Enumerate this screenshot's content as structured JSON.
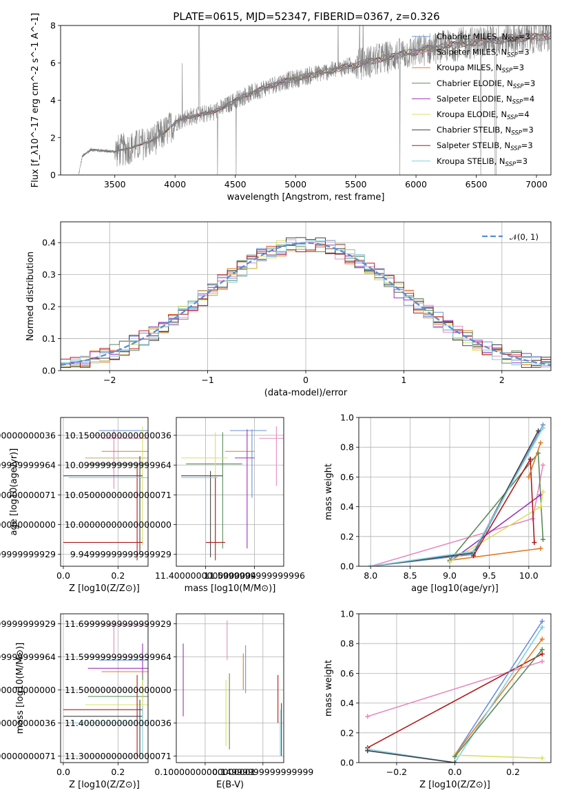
{
  "title": "PLATE=0615, MJD=52347, FIBERID=0367, z=0.326",
  "colors": {
    "chabrier_miles": "#6b8fd6",
    "salpeter_miles": "#e58ac0",
    "kroupa_miles": "#e07b22",
    "chabrier_elodie": "#5a8a5a",
    "salpeter_elodie": "#9b30b8",
    "kroupa_elodie": "#d9e060",
    "chabrier_stelib": "#404040",
    "salpeter_stelib": "#b01818",
    "kroupa_stelib": "#7fd0e0",
    "data": "#808080"
  },
  "chart_data": [
    {
      "type": "line",
      "id": "spectrum",
      "xlabel": "wavelength [Angstrom, rest frame]",
      "ylabel": "Flux [f_λ10^-17 erg cm^-2 s^-1 A^-1]",
      "xlim": [
        3050,
        7120
      ],
      "ylim": [
        0,
        8
      ],
      "xticks": [
        3500,
        4000,
        4500,
        5000,
        5500,
        6000,
        6500,
        7000
      ],
      "yticks": [
        0,
        2,
        4,
        6,
        8
      ],
      "continuum": {
        "x": [
          3200,
          3230,
          3300,
          3400,
          3500,
          3600,
          3700,
          3800,
          3900,
          4000,
          4100,
          4200,
          4300,
          4400,
          4500,
          4600,
          4700,
          4800,
          4900,
          5000,
          5100,
          5200,
          5300,
          5400,
          5500,
          5600,
          5700,
          5800,
          5900,
          6000,
          6100,
          6200,
          6300,
          6400,
          6500,
          6600,
          6700,
          6800,
          6900,
          7000
        ],
        "y": [
          0.0,
          1.0,
          1.35,
          1.3,
          1.25,
          1.4,
          1.6,
          1.8,
          2.2,
          2.8,
          3.1,
          3.2,
          3.35,
          3.6,
          4.0,
          4.3,
          4.55,
          4.8,
          5.0,
          5.15,
          5.3,
          5.45,
          5.6,
          5.75,
          5.9,
          6.05,
          6.2,
          6.35,
          6.5,
          6.6,
          6.75,
          6.85,
          6.95,
          7.05,
          7.1,
          7.2,
          7.25,
          7.3,
          7.35,
          7.4
        ]
      },
      "legend": [
        {
          "name": "Chabrier MILES, N_SSP=3",
          "color_key": "chabrier_miles"
        },
        {
          "name": "Salpeter MILES, N_SSP=3",
          "color_key": "salpeter_miles"
        },
        {
          "name": "Kroupa MILES, N_SSP=3",
          "color_key": "kroupa_miles"
        },
        {
          "name": "Chabrier ELODIE, N_SSP=3",
          "color_key": "chabrier_elodie"
        },
        {
          "name": "Salpeter ELODIE, N_SSP=4",
          "color_key": "salpeter_elodie"
        },
        {
          "name": "Kroupa ELODIE, N_SSP=4",
          "color_key": "kroupa_elodie"
        },
        {
          "name": "Chabrier STELIB, N_SSP=3",
          "color_key": "chabrier_stelib"
        },
        {
          "name": "Salpeter STELIB, N_SSP=3",
          "color_key": "salpeter_stelib"
        },
        {
          "name": "Kroupa STELIB, N_SSP=3",
          "color_key": "kroupa_stelib"
        }
      ],
      "legend_placement": "right"
    },
    {
      "type": "line",
      "id": "residuals",
      "xlabel": "(data-model)/error",
      "ylabel": "Normed distribution",
      "xlim": [
        -2.5,
        2.5
      ],
      "ylim": [
        0,
        0.465
      ],
      "xticks": [
        -2,
        -1,
        0,
        1,
        2
      ],
      "yticks": [
        0.0,
        0.1,
        0.2,
        0.3,
        0.4
      ],
      "grid": true,
      "gaussian_label": "𝒩(0, 1)",
      "gaussian_color": "#5b8bd6",
      "bin_width": 0.1,
      "bins_start": -2.5
    },
    {
      "type": "scatter",
      "id": "age-vs-Z",
      "xlabel": "Z [log10(Z/Z⊙)]",
      "ylabel": "age  [log10(age/yr)]",
      "xlim": [
        -0.01,
        0.31
      ],
      "ylim": [
        9.93,
        10.18
      ],
      "xticks": [
        0.0,
        0.2
      ],
      "yticks": [
        9.95,
        10.0,
        10.05,
        10.1,
        10.15
      ],
      "grid": true,
      "points": [
        {
          "c": "chabrier_miles",
          "x": 0.27,
          "y": 10.158,
          "x0": 0.13,
          "x1": 0.31,
          "y0": 10.158,
          "y1": 10.158
        },
        {
          "c": "salpeter_miles",
          "x": 0.185,
          "y": 10.145,
          "x0": 0.14,
          "x1": 0.31,
          "y0": 10.06,
          "y1": 10.16
        },
        {
          "c": "kroupa_miles",
          "x": 0.28,
          "y": 10.123,
          "x0": 0.14,
          "x1": 0.31,
          "y0": 10.123,
          "y1": 10.123
        },
        {
          "c": "chabrier_elodie",
          "x": 0.29,
          "y": 10.102,
          "x0": 0.09,
          "x1": 0.31,
          "y0": 10.102,
          "y1": 10.102
        },
        {
          "c": "salpeter_elodie",
          "x": 0.29,
          "y": 10.112,
          "x0": 0.08,
          "x1": 0.31,
          "y0": 10.112,
          "y1": 10.112
        },
        {
          "c": "kroupa_elodie",
          "x": 0.29,
          "y": 10.112,
          "x0": 0.08,
          "x1": 0.31,
          "y0": 9.965,
          "y1": 10.165
        },
        {
          "c": "chabrier_stelib",
          "x": 0.28,
          "y": 10.082,
          "x0": 0.0,
          "x1": 0.29,
          "y0": 9.95,
          "y1": 10.115
        },
        {
          "c": "salpeter_stelib",
          "x": 0.27,
          "y": 9.97,
          "x0": 0.0,
          "x1": 0.29,
          "y0": 9.94,
          "y1": 10.1
        },
        {
          "c": "kroupa_stelib",
          "x": 0.29,
          "y": 10.079,
          "x0": 0.02,
          "x1": 0.31,
          "y0": 10.079,
          "y1": 10.079
        }
      ]
    },
    {
      "type": "scatter",
      "id": "age-vs-mass",
      "xlabel": "mass [log10(M/M⊙)]",
      "ylabel": "",
      "xlim": [
        11.28,
        11.72
      ],
      "ylim": [
        9.93,
        10.18
      ],
      "xticks": [
        11.4,
        11.6
      ],
      "yticks": [
        9.95,
        10.0,
        10.05,
        10.1,
        10.15
      ],
      "grid": true,
      "points": [
        {
          "c": "chabrier_miles",
          "x": 11.59,
          "y": 10.158,
          "x0": 11.5,
          "x1": 11.65,
          "y0": 10.045,
          "y1": 10.16
        },
        {
          "c": "salpeter_miles",
          "x": 11.69,
          "y": 10.145,
          "x0": 11.62,
          "x1": 11.72,
          "y0": 10.065,
          "y1": 10.165
        },
        {
          "c": "kroupa_miles",
          "x": 11.56,
          "y": 10.123,
          "x0": 11.48,
          "x1": 11.6,
          "y0": 10.123,
          "y1": 10.123
        },
        {
          "c": "chabrier_elodie",
          "x": 11.47,
          "y": 10.102,
          "x0": 11.32,
          "x1": 11.55,
          "y0": 9.96,
          "y1": 10.155
        },
        {
          "c": "salpeter_elodie",
          "x": 11.57,
          "y": 10.112,
          "x0": 11.52,
          "x1": 11.6,
          "y0": 9.96,
          "y1": 10.16
        },
        {
          "c": "kroupa_elodie",
          "x": 11.44,
          "y": 10.112,
          "x0": 11.3,
          "x1": 11.49,
          "y0": 9.97,
          "y1": 10.155
        },
        {
          "c": "chabrier_stelib",
          "x": 11.42,
          "y": 10.082,
          "x0": 11.3,
          "x1": 11.47,
          "y0": 9.945,
          "y1": 10.09
        },
        {
          "c": "salpeter_stelib",
          "x": 11.44,
          "y": 9.97,
          "x0": 11.4,
          "x1": 11.48,
          "y0": 9.94,
          "y1": 10.08
        },
        {
          "c": "kroupa_stelib",
          "x": 11.4,
          "y": 10.079,
          "x0": 11.3,
          "x1": 11.45,
          "y0": 9.96,
          "y1": 10.08
        }
      ]
    },
    {
      "type": "line",
      "id": "mass-weight-vs-age",
      "xlabel": "age  [log10(age/yr)]",
      "ylabel": "mass weight",
      "xlim": [
        7.85,
        10.28
      ],
      "ylim": [
        0,
        1
      ],
      "xticks": [
        8.0,
        8.5,
        9.0,
        9.5,
        10.0
      ],
      "yticks": [
        0.0,
        0.2,
        0.4,
        0.6,
        0.8,
        1.0
      ],
      "grid": true,
      "series": [
        {
          "c": "chabrier_miles",
          "x": [
            8.0,
            9.3,
            10.18
          ],
          "y": [
            0.0,
            0.08,
            0.95
          ]
        },
        {
          "c": "salpeter_miles",
          "x": [
            8.0,
            10.05,
            10.18
          ],
          "y": [
            0.0,
            0.32,
            0.68
          ]
        },
        {
          "c": "kroupa_miles",
          "x": [
            9.0,
            10.15
          ],
          "y": [
            0.04,
            0.12
          ]
        },
        {
          "c": "chabrier_elodie",
          "x": [
            9.0,
            10.12,
            10.18
          ],
          "y": [
            0.04,
            0.76,
            0.18
          ]
        },
        {
          "c": "salpeter_elodie",
          "x": [
            9.0,
            10.15
          ],
          "y": [
            0.03,
            0.48
          ]
        },
        {
          "c": "kroupa_elodie",
          "x": [
            9.0,
            10.15,
            10.18
          ],
          "y": [
            0.03,
            0.4,
            0.5
          ]
        },
        {
          "c": "chabrier_stelib",
          "x": [
            8.0,
            9.3,
            10.12
          ],
          "y": [
            0.0,
            0.09,
            0.91
          ]
        },
        {
          "c": "salpeter_stelib",
          "x": [
            9.3,
            10.02,
            10.07
          ],
          "y": [
            0.07,
            0.72,
            0.16
          ]
        },
        {
          "c": "kroupa_stelib",
          "x": [
            8.0,
            9.3,
            10.18
          ],
          "y": [
            0.0,
            0.1,
            0.93
          ]
        },
        {
          "c": "kroupa_miles",
          "x": [
            10.0,
            10.15
          ],
          "y": [
            0.6,
            0.83
          ]
        }
      ]
    },
    {
      "type": "scatter",
      "id": "mass-vs-Z",
      "xlabel": "Z [log10(Z/Z⊙)]",
      "ylabel": "mass [log10(M/M⊙)]",
      "xlim": [
        -0.01,
        0.31
      ],
      "ylim": [
        11.28,
        11.73
      ],
      "xticks": [
        0.0,
        0.2
      ],
      "yticks": [
        11.3,
        11.4,
        11.5,
        11.6,
        11.7
      ],
      "grid": true,
      "points": [
        {
          "c": "salpeter_miles",
          "x": 0.185,
          "y": 11.695,
          "x0": 0.14,
          "x1": 0.31,
          "y0": 11.61,
          "y1": 11.71
        },
        {
          "c": "chabrier_miles",
          "x": 0.27,
          "y": 11.59,
          "x0": 0.13,
          "x1": 0.31,
          "y0": 11.59,
          "y1": 11.59
        },
        {
          "c": "salpeter_elodie",
          "x": 0.29,
          "y": 11.565,
          "x0": 0.09,
          "x1": 0.31,
          "y0": 11.5,
          "y1": 11.64
        },
        {
          "c": "kroupa_miles",
          "x": 0.28,
          "y": 11.555,
          "x0": 0.14,
          "x1": 0.31,
          "y0": 11.555,
          "y1": 11.555
        },
        {
          "c": "chabrier_elodie",
          "x": 0.29,
          "y": 11.48,
          "x0": 0.09,
          "x1": 0.31,
          "y0": 11.42,
          "y1": 11.55
        },
        {
          "c": "kroupa_elodie",
          "x": 0.29,
          "y": 11.455,
          "x0": 0.08,
          "x1": 0.31,
          "y0": 11.3,
          "y1": 11.53
        },
        {
          "c": "salpeter_stelib",
          "x": 0.27,
          "y": 11.44,
          "x0": 0.0,
          "x1": 0.29,
          "y0": 11.3,
          "y1": 11.545
        },
        {
          "c": "chabrier_stelib",
          "x": 0.28,
          "y": 11.42,
          "x0": 0.0,
          "x1": 0.29,
          "y0": 11.3,
          "y1": 11.47
        },
        {
          "c": "kroupa_stelib",
          "x": 0.29,
          "y": 11.4,
          "x0": 0.02,
          "x1": 0.31,
          "y0": 11.3,
          "y1": 11.45
        }
      ]
    },
    {
      "type": "scatter",
      "id": "mass-vs-ebv",
      "xlabel": "E(B-V)",
      "ylabel": "",
      "xlim": [
        0.075,
        0.168
      ],
      "ylim": [
        11.28,
        11.73
      ],
      "xticks": [
        0.1,
        0.15
      ],
      "yticks": [
        11.3,
        11.4,
        11.5,
        11.6,
        11.7
      ],
      "grid": true,
      "points": [
        {
          "c": "salpeter_elodie",
          "x": 0.081,
          "y": 11.53,
          "x0": 0.081,
          "x1": 0.081,
          "y0": 11.42,
          "y1": 11.64
        },
        {
          "c": "salpeter_miles",
          "x": 0.119,
          "y": 11.65,
          "x0": 0.119,
          "x1": 0.119,
          "y0": 11.59,
          "y1": 11.71
        },
        {
          "c": "kroupa_elodie",
          "x": 0.118,
          "y": 11.43,
          "x0": 0.118,
          "x1": 0.118,
          "y0": 11.33,
          "y1": 11.53
        },
        {
          "c": "chabrier_elodie",
          "x": 0.121,
          "y": 11.44,
          "x0": 0.121,
          "x1": 0.121,
          "y0": 11.32,
          "y1": 11.55
        },
        {
          "c": "chabrier_miles",
          "x": 0.135,
          "y": 11.55,
          "x0": 0.135,
          "x1": 0.135,
          "y0": 11.49,
          "y1": 11.635
        },
        {
          "c": "kroupa_miles",
          "x": 0.133,
          "y": 11.55,
          "x0": 0.133,
          "x1": 0.133,
          "y0": 11.5,
          "y1": 11.61
        },
        {
          "c": "salpeter_stelib",
          "x": 0.163,
          "y": 11.47,
          "x0": 0.163,
          "x1": 0.163,
          "y0": 11.4,
          "y1": 11.545
        },
        {
          "c": "chabrier_stelib",
          "x": 0.166,
          "y": 11.38,
          "x0": 0.166,
          "x1": 0.166,
          "y0": 11.3,
          "y1": 11.46
        },
        {
          "c": "kroupa_stelib",
          "x": 0.165,
          "y": 11.36,
          "x0": 0.165,
          "x1": 0.165,
          "y0": 11.3,
          "y1": 11.44
        }
      ]
    },
    {
      "type": "line",
      "id": "mass-weight-vs-Z",
      "xlabel": "Z [log10(Z/Z⊙)]",
      "ylabel": "mass weight",
      "xlim": [
        -0.33,
        0.33
      ],
      "ylim": [
        0,
        1
      ],
      "xticks": [
        -0.2,
        0.0,
        0.2
      ],
      "yticks": [
        0.0,
        0.2,
        0.4,
        0.6,
        0.8,
        1.0
      ],
      "grid": true,
      "series": [
        {
          "c": "salpeter_miles",
          "x": [
            -0.3,
            0.3
          ],
          "y": [
            0.31,
            0.68
          ]
        },
        {
          "c": "salpeter_stelib",
          "x": [
            -0.3,
            0.3
          ],
          "y": [
            0.1,
            0.73
          ]
        },
        {
          "c": "chabrier_miles",
          "x": [
            0.0,
            0.3
          ],
          "y": [
            0.05,
            0.95
          ]
        },
        {
          "c": "kroupa_miles",
          "x": [
            0.0,
            0.3
          ],
          "y": [
            0.05,
            0.83
          ]
        },
        {
          "c": "kroupa_stelib",
          "x": [
            -0.3,
            0.0,
            0.3
          ],
          "y": [
            0.09,
            0.0,
            0.91
          ]
        },
        {
          "c": "chabrier_stelib",
          "x": [
            -0.3,
            0.0
          ],
          "y": [
            0.08,
            0.0
          ]
        },
        {
          "c": "kroupa_elodie",
          "x": [
            0.0,
            0.3
          ],
          "y": [
            0.05,
            0.03
          ]
        },
        {
          "c": "chabrier_elodie",
          "x": [
            0.0,
            0.3
          ],
          "y": [
            0.04,
            0.76
          ]
        }
      ]
    }
  ]
}
